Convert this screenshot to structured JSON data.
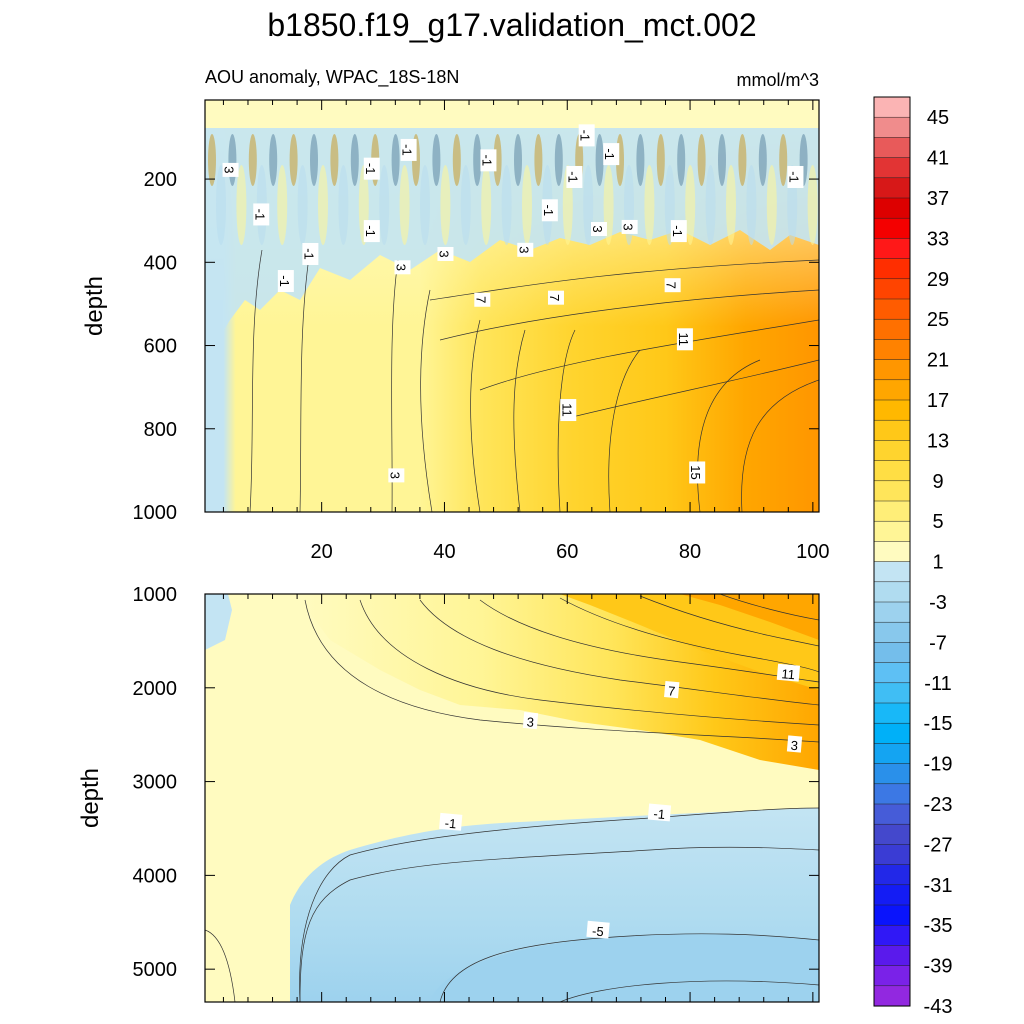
{
  "chart_data": {
    "type": "heatmap",
    "title": "b1850.f19_g17.validation_mct.002",
    "subtitle_left": "AOU anomaly, WPAC_18S-18N",
    "units": "mmol/m^3",
    "colorbar": {
      "labels": [
        "45",
        "41",
        "37",
        "33",
        "29",
        "25",
        "21",
        "17",
        "13",
        "9",
        "5",
        "1",
        "-3",
        "-7",
        "-11",
        "-15",
        "-19",
        "-23",
        "-27",
        "-31",
        "-35",
        "-39",
        "-43"
      ],
      "colors": [
        "#fbb4b4",
        "#f08c8c",
        "#e85a5a",
        "#e23434",
        "#d71818",
        "#dd0000",
        "#f40000",
        "#ff1818",
        "#ff2e00",
        "#ff4400",
        "#ff5c00",
        "#ff7000",
        "#ff8200",
        "#ff9600",
        "#ffa600",
        "#ffb800",
        "#ffc818",
        "#ffd42e",
        "#ffde44",
        "#ffe55a",
        "#ffee78",
        "#fff596",
        "#fffbc0",
        "#c3e4f3",
        "#b0dcf0",
        "#9dd2ee",
        "#88c8ec",
        "#74beeb",
        "#5ec0f4",
        "#40bef4",
        "#18b8f8",
        "#00b0f8",
        "#14a4f2",
        "#2a90ea",
        "#3c78e4",
        "#465cd8",
        "#4448cc",
        "#3a3cd4",
        "#2228e8",
        "#141cf4",
        "#0a14fc",
        "#3018f6",
        "#5a1aec",
        "#7a22e8",
        "#9228e0"
      ]
    },
    "panels": [
      {
        "name": "upper",
        "ylabel": "depth",
        "xlim": [
          1,
          101
        ],
        "ylim": [
          1000,
          10
        ],
        "xticks": [
          20,
          40,
          60,
          80,
          100
        ],
        "yticks": [
          200,
          400,
          600,
          800,
          1000
        ],
        "contour_labels": [
          {
            "text": "3",
            "x": 5,
            "y": 178
          },
          {
            "text": "-1",
            "x": 10,
            "y": 285
          },
          {
            "text": "-1",
            "x": 18,
            "y": 380
          },
          {
            "text": "-1",
            "x": 14,
            "y": 445
          },
          {
            "text": "-1",
            "x": 28,
            "y": 175
          },
          {
            "text": "-1",
            "x": 28,
            "y": 325
          },
          {
            "text": "3",
            "x": 33,
            "y": 412
          },
          {
            "text": "-1",
            "x": 34,
            "y": 130
          },
          {
            "text": "3",
            "x": 40,
            "y": 380
          },
          {
            "text": "-1",
            "x": 47,
            "y": 155
          },
          {
            "text": "7",
            "x": 46,
            "y": 490
          },
          {
            "text": "3",
            "x": 53,
            "y": 370
          },
          {
            "text": "-1",
            "x": 57,
            "y": 275
          },
          {
            "text": "7",
            "x": 58,
            "y": 485
          },
          {
            "text": "-1",
            "x": 61,
            "y": 195
          },
          {
            "text": "3",
            "x": 65,
            "y": 320
          },
          {
            "text": "-1",
            "x": 67,
            "y": 140
          },
          {
            "text": "-1",
            "x": 63,
            "y": 95
          },
          {
            "text": "3",
            "x": 70,
            "y": 315
          },
          {
            "text": "-1",
            "x": 78,
            "y": 325
          },
          {
            "text": "7",
            "x": 77,
            "y": 455
          },
          {
            "text": "11",
            "x": 79,
            "y": 585
          },
          {
            "text": "11",
            "x": 60,
            "y": 755
          },
          {
            "text": "15",
            "x": 81,
            "y": 905
          },
          {
            "text": "3",
            "x": 32,
            "y": 912
          },
          {
            "text": "-1",
            "x": 97,
            "y": 195
          }
        ]
      },
      {
        "name": "lower",
        "ylabel": "depth",
        "xlim": [
          1,
          101
        ],
        "ylim": [
          1000,
          5350
        ],
        "yticks": [
          1000,
          2000,
          3000,
          4000,
          5000
        ],
        "contour_labels": [
          {
            "text": "11",
            "x": 96,
            "y": 1850
          },
          {
            "text": "7",
            "x": 77,
            "y": 2030
          },
          {
            "text": "3",
            "x": 54,
            "y": 2360
          },
          {
            "text": "3",
            "x": 97,
            "y": 2610
          },
          {
            "text": "-1",
            "x": 41,
            "y": 3440
          },
          {
            "text": "-1",
            "x": 75,
            "y": 3340
          },
          {
            "text": "-5",
            "x": 65,
            "y": 4590
          }
        ]
      }
    ]
  }
}
